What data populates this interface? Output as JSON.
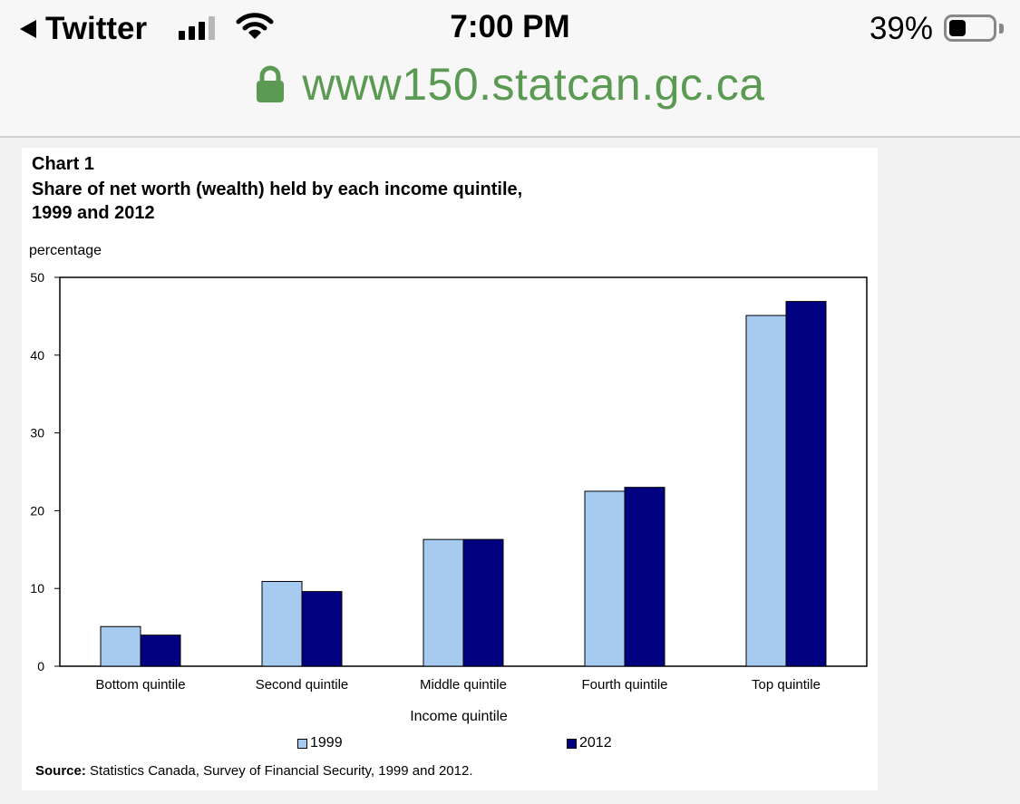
{
  "status_bar": {
    "back_app": "Twitter",
    "time": "7:00 PM",
    "battery": "39%",
    "battery_level": 0.39
  },
  "url_bar": {
    "url": "www150.statcan.gc.ca"
  },
  "colors": {
    "series_1999": "#a6caf0",
    "series_2012": "#000080",
    "url_green": "#5a9a52"
  },
  "chart_data": {
    "type": "bar",
    "label": "Chart 1",
    "title_lines": [
      "Share of net worth (wealth) held by each income quintile,",
      "1999 and 2012"
    ],
    "ylabel": "percentage",
    "xlabel": "Income quintile",
    "ylim": [
      0,
      50
    ],
    "yticks": [
      0,
      10,
      20,
      30,
      40,
      50
    ],
    "categories": [
      "Bottom quintile",
      "Second quintile",
      "Middle quintile",
      "Fourth quintile",
      "Top quintile"
    ],
    "series": [
      {
        "name": "1999",
        "values": [
          5.1,
          10.9,
          16.3,
          22.5,
          45.1
        ]
      },
      {
        "name": "2012",
        "values": [
          4.0,
          9.6,
          16.3,
          23.0,
          46.9
        ]
      }
    ],
    "grid": false,
    "legend_position": "bottom",
    "source_label": "Source:",
    "source_text": " Statistics Canada, Survey of Financial Security, 1999 and 2012."
  }
}
